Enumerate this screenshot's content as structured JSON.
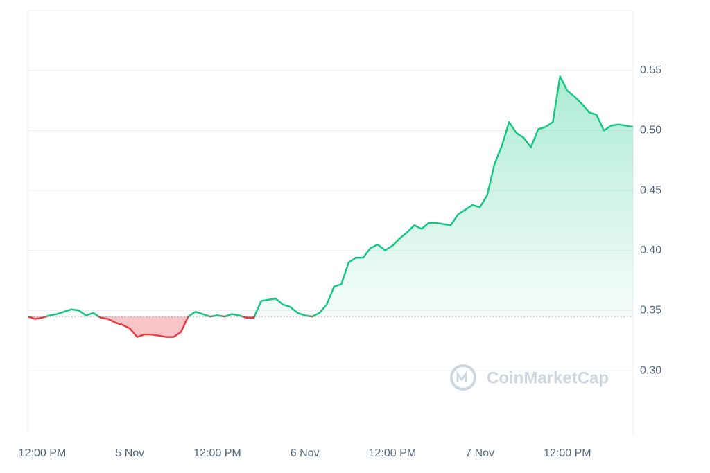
{
  "chart_data": {
    "type": "line",
    "watermark": "CoinMarketCap",
    "categories": [
      null,
      null,
      "12:00 PM",
      null,
      null,
      null,
      null,
      null,
      null,
      null,
      null,
      null,
      null,
      null,
      "5 Nov",
      null,
      null,
      null,
      null,
      null,
      null,
      null,
      null,
      null,
      null,
      null,
      "12:00 PM",
      null,
      null,
      null,
      null,
      null,
      null,
      null,
      null,
      null,
      null,
      null,
      "6 Nov",
      null,
      null,
      null,
      null,
      null,
      null,
      null,
      null,
      null,
      null,
      null,
      "12:00 PM",
      null,
      null,
      null,
      null,
      null,
      null,
      null,
      null,
      null,
      null,
      null,
      "7 Nov",
      null,
      null,
      null,
      null,
      null,
      null,
      null,
      null,
      null,
      null,
      null,
      "12:00 PM",
      null,
      null,
      null,
      null,
      null,
      null,
      null,
      null,
      null
    ],
    "series": [
      {
        "color": "#16c784",
        "below_color": "#ea3943",
        "values": [
          0.345,
          0.343,
          0.344,
          0.346,
          0.347,
          0.349,
          0.351,
          0.35,
          0.346,
          0.348,
          0.344,
          0.343,
          0.34,
          0.338,
          0.335,
          0.328,
          0.33,
          0.33,
          0.329,
          0.328,
          0.328,
          0.332,
          0.345,
          0.349,
          0.347,
          0.345,
          0.346,
          0.345,
          0.347,
          0.346,
          0.344,
          0.344,
          0.358,
          0.359,
          0.36,
          0.355,
          0.353,
          0.348,
          0.346,
          0.345,
          0.348,
          0.355,
          0.37,
          0.372,
          0.39,
          0.394,
          0.394,
          0.402,
          0.405,
          0.4,
          0.404,
          0.41,
          0.415,
          0.421,
          0.418,
          0.423,
          0.423,
          0.422,
          0.421,
          0.43,
          0.434,
          0.438,
          0.436,
          0.446,
          0.472,
          0.487,
          0.507,
          0.498,
          0.494,
          0.486,
          0.501,
          0.503,
          0.507,
          0.545,
          0.533,
          0.528,
          0.522,
          0.515,
          0.513,
          0.5,
          0.504,
          0.505,
          0.504,
          0.503
        ]
      }
    ],
    "baseline": 0.345,
    "ylim": [
      0.247,
      0.6
    ],
    "yticks": [
      {
        "value": 0.3,
        "label": "0.30"
      },
      0.35,
      {
        "value": 0.4,
        "label": "0.40"
      },
      0.45,
      {
        "value": 0.5,
        "label": "0.50"
      },
      0.55
    ],
    "grid": true
  }
}
